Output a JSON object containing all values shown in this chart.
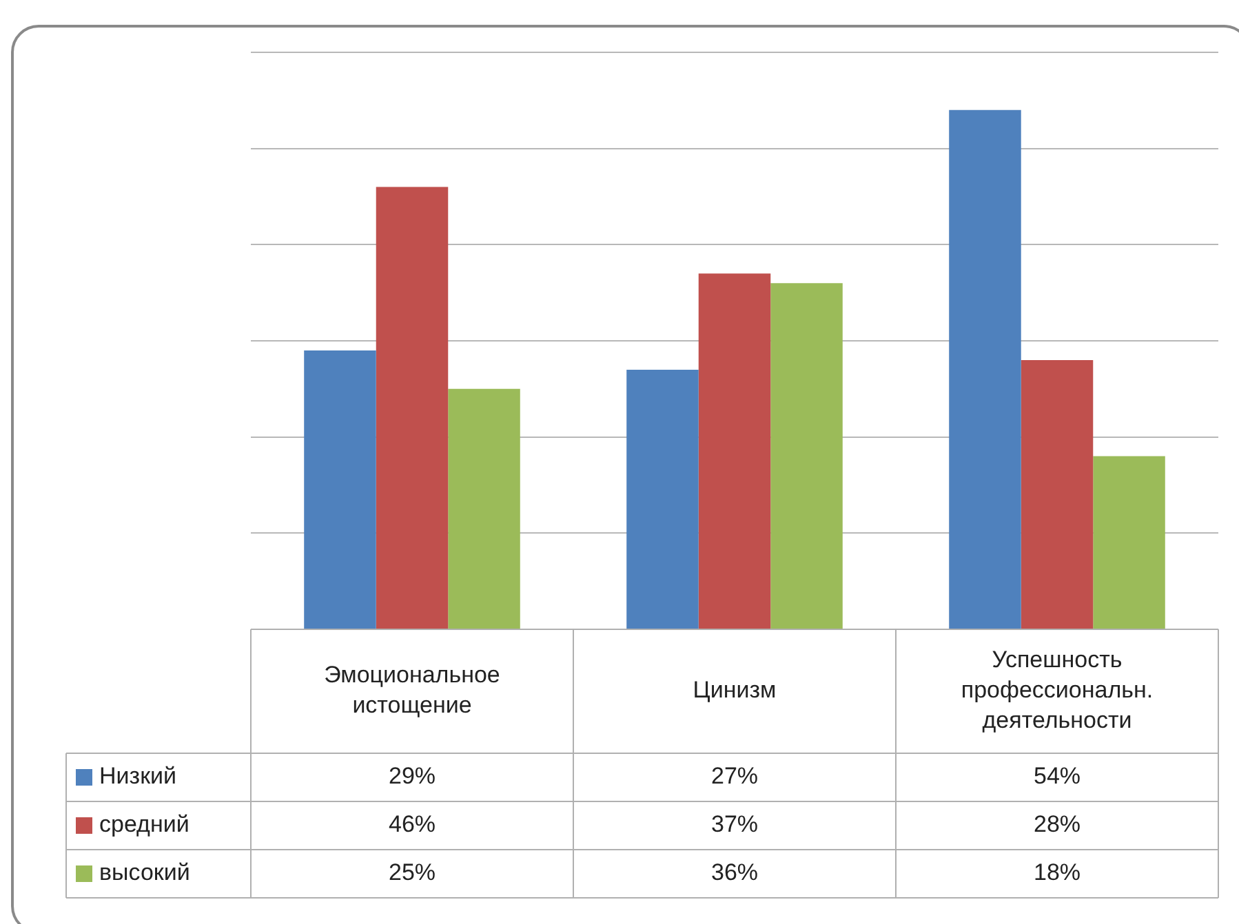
{
  "chart_data": {
    "type": "bar",
    "categories": [
      "Эмоциональное истощение",
      "Цинизм",
      "Успешность профессиональн. деятельности"
    ],
    "series": [
      {
        "name": "Низкий",
        "color": "#4f81bd",
        "values": [
          29,
          27,
          54
        ],
        "value_labels": [
          "29%",
          "27%",
          "54%"
        ]
      },
      {
        "name": "средний",
        "color": "#c0504d",
        "values": [
          46,
          37,
          28
        ],
        "value_labels": [
          "46%",
          "37%",
          "28%"
        ]
      },
      {
        "name": "высокий",
        "color": "#9bbb59",
        "values": [
          25,
          36,
          18
        ],
        "value_labels": [
          "25%",
          "36%",
          "18%"
        ]
      }
    ],
    "ylim": [
      0,
      60
    ],
    "yticks": [
      {
        "value": 0,
        "label": null
      },
      {
        "value": 10,
        "label": null
      },
      {
        "value": 20,
        "label": null
      },
      {
        "value": 30,
        "label": null
      },
      {
        "value": 40,
        "label": null
      },
      {
        "value": 50,
        "label": null
      },
      {
        "value": 60,
        "label": null
      }
    ],
    "grid": "y",
    "legend": "bottom",
    "tick_labels": "x"
  }
}
